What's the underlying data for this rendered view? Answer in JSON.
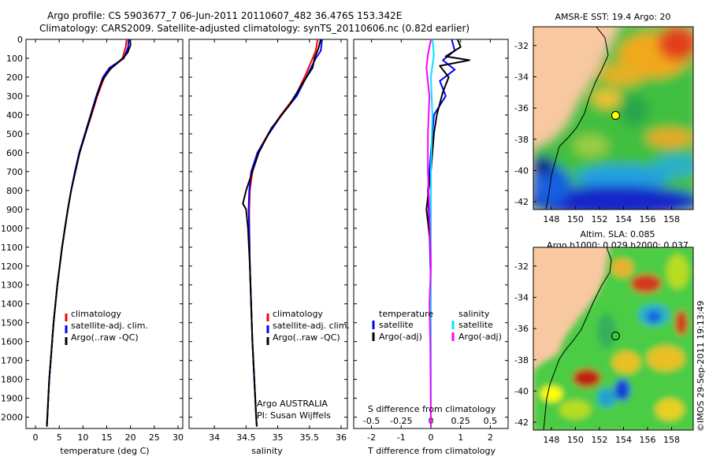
{
  "header": {
    "line1": "Argo profile: CS 5903677_7 06-Jun-2011 20110607_482 36.476S 153.342E",
    "line2": "Climatology: CARS2009. Satellite-adjusted climatology: synTS_20110606.nc (0.82d earlier)"
  },
  "chart_data": [
    {
      "type": "line",
      "title": "",
      "xlabel": "temperature (deg C)",
      "ylabel": "",
      "xlim": [
        -2,
        31
      ],
      "ylim": [
        2060,
        0
      ],
      "xticks": [
        "0",
        "5",
        "10",
        "15",
        "20",
        "25",
        "30"
      ],
      "yticks": [
        "0",
        "100",
        "200",
        "300",
        "400",
        "500",
        "600",
        "700",
        "800",
        "900",
        "1000",
        "1100",
        "1200",
        "1300",
        "1400",
        "1500",
        "1600",
        "1700",
        "1800",
        "1900",
        "2000"
      ],
      "series": [
        {
          "name": "climatology",
          "color": "#ff0000",
          "points": [
            [
              19.2,
              0
            ],
            [
              19.0,
              40
            ],
            [
              18.3,
              100
            ],
            [
              16.0,
              150
            ],
            [
              14.5,
              200
            ],
            [
              13.0,
              300
            ],
            [
              11.8,
              400
            ],
            [
              10.5,
              500
            ],
            [
              9.3,
              600
            ],
            [
              8.3,
              700
            ],
            [
              7.5,
              800
            ],
            [
              6.8,
              900
            ],
            [
              6.2,
              1000
            ],
            [
              5.6,
              1100
            ],
            [
              5.1,
              1200
            ],
            [
              4.6,
              1300
            ],
            [
              4.2,
              1400
            ],
            [
              3.8,
              1500
            ],
            [
              3.5,
              1600
            ],
            [
              3.2,
              1700
            ],
            [
              2.9,
              1800
            ],
            [
              2.7,
              1900
            ],
            [
              2.5,
              2000
            ],
            [
              2.4,
              2050
            ]
          ]
        },
        {
          "name": "satellite-adj. clim.",
          "color": "#0000ff",
          "points": [
            [
              19.6,
              0
            ],
            [
              19.5,
              40
            ],
            [
              18.6,
              100
            ],
            [
              15.6,
              150
            ],
            [
              14.2,
              200
            ],
            [
              12.8,
              300
            ],
            [
              11.6,
              400
            ],
            [
              10.4,
              500
            ],
            [
              9.2,
              600
            ],
            [
              8.3,
              700
            ],
            [
              7.5,
              800
            ],
            [
              6.8,
              900
            ],
            [
              6.2,
              1000
            ],
            [
              5.6,
              1100
            ],
            [
              5.1,
              1200
            ],
            [
              4.6,
              1300
            ],
            [
              4.2,
              1400
            ],
            [
              3.8,
              1500
            ],
            [
              3.5,
              1600
            ],
            [
              3.2,
              1700
            ],
            [
              2.9,
              1800
            ],
            [
              2.7,
              1900
            ],
            [
              2.5,
              2000
            ],
            [
              2.4,
              2050
            ]
          ]
        },
        {
          "name": "Argo(..raw -QC)",
          "color": "#000000",
          "points": [
            [
              19.9,
              0
            ],
            [
              20.0,
              30
            ],
            [
              19.4,
              70
            ],
            [
              18.0,
              110
            ],
            [
              15.6,
              160
            ],
            [
              14.0,
              220
            ],
            [
              12.9,
              300
            ],
            [
              11.7,
              400
            ],
            [
              10.5,
              500
            ],
            [
              9.3,
              600
            ],
            [
              8.4,
              700
            ],
            [
              7.5,
              800
            ],
            [
              6.8,
              900
            ],
            [
              6.2,
              1000
            ],
            [
              5.6,
              1100
            ],
            [
              5.1,
              1200
            ],
            [
              4.6,
              1300
            ],
            [
              4.2,
              1400
            ],
            [
              3.8,
              1500
            ],
            [
              3.5,
              1600
            ],
            [
              3.2,
              1700
            ],
            [
              2.9,
              1800
            ],
            [
              2.7,
              1900
            ],
            [
              2.5,
              2000
            ],
            [
              2.4,
              2050
            ]
          ]
        }
      ],
      "legend": {
        "position": "lower-middle",
        "entries": [
          "climatology",
          "satellite-adj. clim.",
          "Argo(..raw -QC)"
        ]
      }
    },
    {
      "type": "line",
      "title": "",
      "xlabel": "salinity",
      "ylabel": "",
      "xlim": [
        33.6,
        36.1
      ],
      "ylim": [
        2060,
        0
      ],
      "xticks": [
        "34",
        "34.5",
        "35",
        "35.5",
        "36"
      ],
      "series": [
        {
          "name": "climatology",
          "color": "#ff0000",
          "points": [
            [
              35.63,
              0
            ],
            [
              35.6,
              60
            ],
            [
              35.55,
              100
            ],
            [
              35.45,
              180
            ],
            [
              35.28,
              300
            ],
            [
              35.05,
              400
            ],
            [
              34.85,
              500
            ],
            [
              34.68,
              600
            ],
            [
              34.6,
              700
            ],
            [
              34.56,
              800
            ],
            [
              34.55,
              900
            ],
            [
              34.55,
              1000
            ],
            [
              34.56,
              1200
            ],
            [
              34.58,
              1400
            ],
            [
              34.6,
              1600
            ],
            [
              34.63,
              1800
            ],
            [
              34.66,
              2000
            ],
            [
              34.67,
              2050
            ]
          ]
        },
        {
          "name": "satellite-adj. clim.",
          "color": "#0000ff",
          "points": [
            [
              35.7,
              0
            ],
            [
              35.68,
              60
            ],
            [
              35.6,
              100
            ],
            [
              35.48,
              180
            ],
            [
              35.3,
              300
            ],
            [
              35.06,
              400
            ],
            [
              34.86,
              500
            ],
            [
              34.68,
              600
            ],
            [
              34.58,
              700
            ],
            [
              34.55,
              800
            ],
            [
              34.54,
              900
            ],
            [
              34.55,
              1000
            ],
            [
              34.56,
              1200
            ],
            [
              34.58,
              1400
            ],
            [
              34.6,
              1600
            ],
            [
              34.63,
              1800
            ],
            [
              34.66,
              2000
            ],
            [
              34.67,
              2050
            ]
          ]
        },
        {
          "name": "Argo(..raw -QC)",
          "color": "#000000",
          "points": [
            [
              35.68,
              0
            ],
            [
              35.64,
              50
            ],
            [
              35.58,
              100
            ],
            [
              35.55,
              150
            ],
            [
              35.36,
              250
            ],
            [
              35.18,
              350
            ],
            [
              34.9,
              470
            ],
            [
              34.7,
              600
            ],
            [
              34.6,
              700
            ],
            [
              34.5,
              800
            ],
            [
              34.45,
              870
            ],
            [
              34.5,
              900
            ],
            [
              34.53,
              1000
            ],
            [
              34.56,
              1200
            ],
            [
              34.58,
              1400
            ],
            [
              34.6,
              1600
            ],
            [
              34.63,
              1800
            ],
            [
              34.66,
              2000
            ],
            [
              34.67,
              2050
            ]
          ]
        }
      ],
      "legend": {
        "position": "lower-middle",
        "entries": [
          "climatology",
          "satellite-adj. clim.",
          "Argo(..raw -QC)"
        ]
      },
      "annotations": [
        "Argo AUSTRALIA",
        "PI: Susan Wijffels"
      ]
    },
    {
      "type": "line",
      "title": "",
      "xlabel": "T difference from climatology",
      "xlabel2": "S difference from climatology",
      "xlim": [
        -2.6,
        2.6
      ],
      "xticks": [
        "-2",
        "-1",
        "0",
        "1",
        "2"
      ],
      "xticks_top": [
        "-0.5",
        "-0.25",
        "0",
        "0.25",
        "0.5"
      ],
      "ylim": [
        2060,
        0
      ],
      "series": [
        {
          "name": "temperature satellite",
          "color": "#0000ff",
          "points": [
            [
              0.7,
              0
            ],
            [
              0.8,
              60
            ],
            [
              0.4,
              110
            ],
            [
              0.8,
              160
            ],
            [
              0.3,
              220
            ],
            [
              0.5,
              300
            ],
            [
              0.1,
              400
            ],
            [
              0.0,
              600
            ],
            [
              -0.1,
              800
            ],
            [
              -0.05,
              1000
            ],
            [
              0.0,
              1300
            ],
            [
              0.0,
              1700
            ],
            [
              0.0,
              2050
            ]
          ]
        },
        {
          "name": "temperature Argo(-adj)",
          "color": "#000000",
          "points": [
            [
              0.9,
              0
            ],
            [
              1.0,
              40
            ],
            [
              0.5,
              90
            ],
            [
              1.3,
              110
            ],
            [
              0.3,
              140
            ],
            [
              0.6,
              200
            ],
            [
              0.4,
              280
            ],
            [
              0.2,
              400
            ],
            [
              0.1,
              500
            ],
            [
              0.0,
              700
            ],
            [
              -0.15,
              900
            ],
            [
              0.0,
              1100
            ],
            [
              0.0,
              1500
            ],
            [
              0.0,
              2050
            ]
          ]
        },
        {
          "name": "salinity satellite",
          "color": "#00e5ff",
          "points": [
            [
              0.05,
              0
            ],
            [
              0.1,
              80
            ],
            [
              0.0,
              200
            ],
            [
              0.05,
              400
            ],
            [
              0.0,
              700
            ],
            [
              0.0,
              1000
            ],
            [
              0.0,
              1500
            ],
            [
              0.0,
              2050
            ]
          ]
        },
        {
          "name": "salinity Argo(-adj)",
          "color": "#ff00ff",
          "points": [
            [
              0.0,
              0
            ],
            [
              -0.05,
              40
            ],
            [
              -0.1,
              80
            ],
            [
              -0.15,
              150
            ],
            [
              -0.05,
              300
            ],
            [
              -0.1,
              500
            ],
            [
              -0.1,
              700
            ],
            [
              -0.05,
              900
            ],
            [
              0.0,
              1200
            ],
            [
              -0.05,
              1400
            ],
            [
              -0.02,
              1600
            ],
            [
              0.0,
              2050
            ]
          ]
        }
      ],
      "legend": {
        "temperature": {
          "title": "temperature",
          "entries": [
            "satellite",
            "Argo(-adj)"
          ]
        },
        "salinity": {
          "title": "salinity",
          "entries": [
            "satellite",
            "Argo(-adj)"
          ]
        }
      }
    },
    {
      "type": "heatmap",
      "title": "AMSR-E SST: 19.4  Argo: 20",
      "xticks": [
        "148",
        "150",
        "152",
        "154",
        "156",
        "158"
      ],
      "yticks": [
        "-32",
        "-34",
        "-36",
        "-38",
        "-40",
        "-42"
      ],
      "xlim": [
        146.5,
        159.8
      ],
      "ylim": [
        -42.5,
        -30.8
      ],
      "marker": {
        "lon": 153.342,
        "lat": -36.476
      }
    },
    {
      "type": "heatmap",
      "title": "Altim. SLA: 0.085",
      "subtitle": "Argo h1000: 0.029 h2000: 0.037",
      "xticks": [
        "148",
        "150",
        "152",
        "154",
        "156",
        "158"
      ],
      "yticks": [
        "-32",
        "-34",
        "-36",
        "-38",
        "-40",
        "-42"
      ],
      "xlim": [
        146.5,
        159.8
      ],
      "ylim": [
        -42.5,
        -30.8
      ],
      "marker": {
        "lon": 153.342,
        "lat": -36.476
      }
    }
  ],
  "stamp": "©IMOS 29-Sep-2011 19:13:49"
}
